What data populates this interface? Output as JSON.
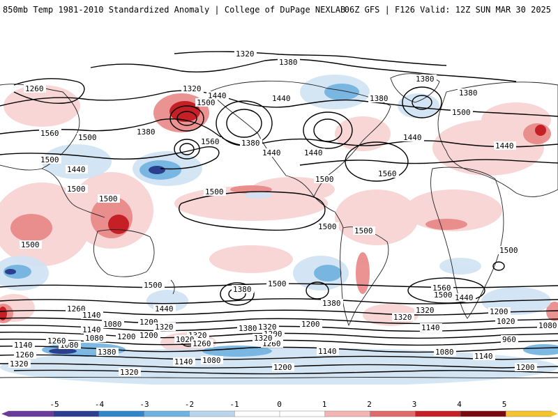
{
  "header": {
    "title_left": "850mb Temp 1981-2010 Standardized Anomaly | College of DuPage NEXLAB",
    "title_right": "06Z GFS | F126 Valid: 12Z SUN MAR 30 2025"
  },
  "colorbar": {
    "ticks": [
      "-5",
      "-4",
      "-3",
      "-2",
      "-1",
      "0",
      "1",
      "2",
      "3",
      "4",
      "5"
    ],
    "colors": [
      "#6a3a9c",
      "#2a3f8e",
      "#2f86c8",
      "#6fb1e0",
      "#b9d6ee",
      "#ffffff",
      "#ffffff",
      "#f3b4b4",
      "#e06a6a",
      "#c42026",
      "#7a0a10",
      "#f4c430"
    ]
  },
  "contour_labels": [
    {
      "text": "1320"
    },
    {
      "text": "1380"
    },
    {
      "text": "1380"
    },
    {
      "text": "1260"
    },
    {
      "text": "1320"
    },
    {
      "text": "1440"
    },
    {
      "text": "1500"
    },
    {
      "text": "1440"
    },
    {
      "text": "1380"
    },
    {
      "text": "1380"
    },
    {
      "text": "1500"
    },
    {
      "text": "1560"
    },
    {
      "text": "1500"
    },
    {
      "text": "1380"
    },
    {
      "text": "1560"
    },
    {
      "text": "1380"
    },
    {
      "text": "1440"
    },
    {
      "text": "1440"
    },
    {
      "text": "1440"
    },
    {
      "text": "1440"
    },
    {
      "text": "1500"
    },
    {
      "text": "1440"
    },
    {
      "text": "1500"
    },
    {
      "text": "1560"
    },
    {
      "text": "1500"
    },
    {
      "text": "1500"
    },
    {
      "text": "1500"
    },
    {
      "text": "1500"
    },
    {
      "text": "1500"
    },
    {
      "text": "1500"
    },
    {
      "text": "1500"
    },
    {
      "text": "1500"
    },
    {
      "text": "1380"
    },
    {
      "text": "1500"
    },
    {
      "text": "1560"
    },
    {
      "text": "1500"
    },
    {
      "text": "1440"
    },
    {
      "text": "1380"
    },
    {
      "text": "1260"
    },
    {
      "text": "1440"
    },
    {
      "text": "1200"
    },
    {
      "text": "1140"
    },
    {
      "text": "1080"
    },
    {
      "text": "1200"
    },
    {
      "text": "1140"
    },
    {
      "text": "1320"
    },
    {
      "text": "1200"
    },
    {
      "text": "1380"
    },
    {
      "text": "1320"
    },
    {
      "text": "1320"
    },
    {
      "text": "1080"
    },
    {
      "text": "1200"
    },
    {
      "text": "1020"
    },
    {
      "text": "1260"
    },
    {
      "text": "1260"
    },
    {
      "text": "1080"
    },
    {
      "text": "1320"
    },
    {
      "text": "1260"
    },
    {
      "text": "1320"
    },
    {
      "text": "1140"
    },
    {
      "text": "1080"
    },
    {
      "text": "1140"
    },
    {
      "text": "1320"
    },
    {
      "text": "1200"
    },
    {
      "text": "1260"
    },
    {
      "text": "1200"
    },
    {
      "text": "1140"
    },
    {
      "text": "1200"
    },
    {
      "text": "1020"
    },
    {
      "text": "1080"
    },
    {
      "text": "960"
    },
    {
      "text": "1140"
    },
    {
      "text": "1080"
    },
    {
      "text": "1200"
    },
    {
      "text": "1140"
    },
    {
      "text": "1320"
    },
    {
      "text": "1320"
    },
    {
      "text": "1380"
    }
  ]
}
